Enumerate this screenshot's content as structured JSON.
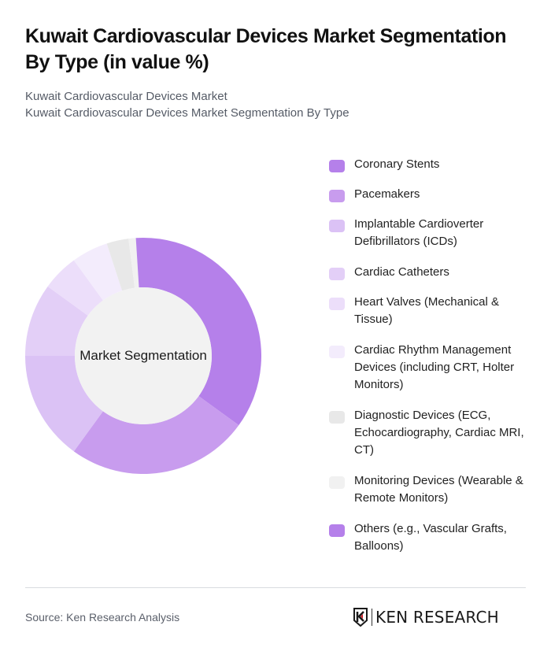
{
  "header": {
    "title": "Kuwait Cardiovascular Devices Market Segmentation By Type (in value %)",
    "subtitle_line1": "Kuwait Cardiovascular Devices Market",
    "subtitle_line2": "Kuwait Cardiovascular Devices Market Segmentation By Type"
  },
  "chart": {
    "center_label": "Market Segmentation"
  },
  "chart_data": {
    "type": "pie",
    "variant": "donut",
    "title": "Kuwait Cardiovascular Devices Market Segmentation By Type (in value %)",
    "center_label": "Market Segmentation",
    "categories": [
      "Coronary Stents",
      "Pacemakers",
      "Implantable Cardioverter Defibrillators (ICDs)",
      "Cardiac Catheters",
      "Heart Valves (Mechanical & Tissue)",
      "Cardiac Rhythm Management Devices (including CRT, Holter Monitors)",
      "Diagnostic Devices (ECG, Echocardiography, Cardiac MRI, CT)",
      "Monitoring Devices (Wearable & Remote Monitors)",
      "Others (e.g., Vascular Grafts, Balloons)"
    ],
    "values": [
      35,
      25,
      15,
      10,
      5,
      5,
      3,
      1,
      1
    ],
    "colors": [
      "#b580ea",
      "#c89cee",
      "#dbc2f5",
      "#e3cff7",
      "#ecdefa",
      "#f3ecfc",
      "#e8e8e8",
      "#f1f1f1",
      "#b580ea"
    ],
    "legend_position": "right",
    "start_angle_deg": 0,
    "direction": "clockwise"
  },
  "legend": {
    "items": [
      {
        "label": "Coronary Stents",
        "color": "#b580ea"
      },
      {
        "label": "Pacemakers",
        "color": "#c89cee"
      },
      {
        "label": "Implantable Cardioverter Defibrillators (ICDs)",
        "color": "#dbc2f5"
      },
      {
        "label": "Cardiac Catheters",
        "color": "#e3cff7"
      },
      {
        "label": "Heart Valves (Mechanical & Tissue)",
        "color": "#ecdefa"
      },
      {
        "label": "Cardiac Rhythm Management Devices (including CRT, Holter Monitors)",
        "color": "#f3ecfc"
      },
      {
        "label": "Diagnostic Devices (ECG, Echocardiography, Cardiac MRI, CT)",
        "color": "#e8e8e8"
      },
      {
        "label": "Monitoring Devices (Wearable & Remote Monitors)",
        "color": "#f1f1f1"
      },
      {
        "label": "Others (e.g., Vascular Grafts, Balloons)",
        "color": "#b580ea"
      }
    ]
  },
  "footer": {
    "source": "Source: Ken Research Analysis",
    "logo_text": "KEN RESEARCH"
  }
}
